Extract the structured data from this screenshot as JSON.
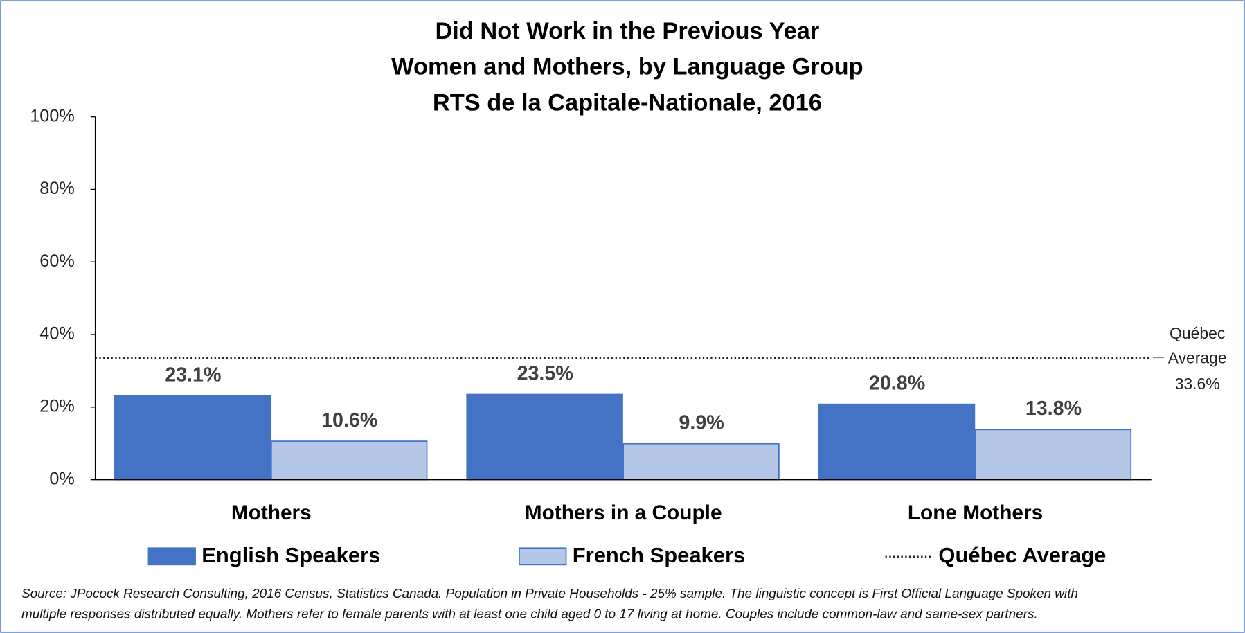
{
  "chart_data": {
    "type": "bar",
    "title": [
      "Did Not Work in the Previous Year",
      "Women and Mothers, by Language Group",
      "RTS de la Capitale-Nationale, 2016"
    ],
    "categories": [
      "Mothers",
      "Mothers in a Couple",
      "Lone Mothers"
    ],
    "series": [
      {
        "name": "English Speakers",
        "color": "#4472c4",
        "values": [
          23.1,
          23.5,
          20.8
        ],
        "value_labels": [
          "23.1%",
          "23.5%",
          "20.8%"
        ]
      },
      {
        "name": "French Speakers",
        "color": "#b4c7e7",
        "values": [
          10.6,
          9.9,
          13.8
        ],
        "value_labels": [
          "10.6%",
          "9.9%",
          "13.8%"
        ]
      }
    ],
    "reference_line": {
      "name": "Québec Average",
      "value": 33.6,
      "annotation": [
        "Québec",
        "Average"
      ],
      "value_label": "33.6%"
    },
    "ylim": [
      0,
      100
    ],
    "yticks": [
      {
        "value": 0,
        "label": "0%"
      },
      {
        "value": 20,
        "label": "20%"
      },
      {
        "value": 40,
        "label": "40%"
      },
      {
        "value": 60,
        "label": "60%"
      },
      {
        "value": 80,
        "label": "80%"
      },
      {
        "value": 100,
        "label": "100%"
      }
    ],
    "source": [
      "Source: JPocock Research Consulting, 2016 Census, Statistics Canada. Population in Private Households - 25% sample. The linguistic concept is First Official Language Spoken with",
      "multiple responses distributed equally. Mothers refer to female parents with at least one child aged 0 to 17 living at home. Couples include common-law and same-sex partners."
    ]
  }
}
